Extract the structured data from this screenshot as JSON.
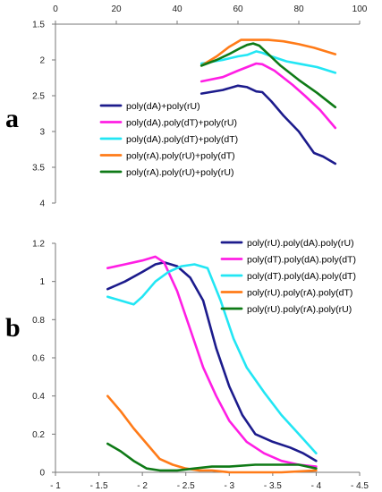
{
  "chart_data": [
    {
      "panel_label": "a",
      "type": "line",
      "x_axis": {
        "position": "top",
        "min": 0,
        "max": 100,
        "ticks": [
          0,
          20,
          40,
          60,
          80,
          100
        ],
        "tick_labels": [
          "0",
          "20",
          "40",
          "60",
          "80",
          "100"
        ]
      },
      "y_axis": {
        "inverted": true,
        "min": 1.5,
        "max": 4,
        "ticks": [
          1.5,
          2,
          2.5,
          3,
          3.5,
          4
        ],
        "tick_labels": [
          "1.5",
          "2",
          "2.5",
          "3",
          "3.5",
          "4"
        ]
      },
      "legend_position": "center",
      "series": [
        {
          "name": "poly(dA)+poly(rU)",
          "color": "#1c1b8c",
          "x": [
            48,
            55,
            60,
            63,
            66,
            68,
            71,
            75,
            80,
            85,
            88,
            92
          ],
          "y": [
            2.47,
            2.42,
            2.36,
            2.38,
            2.44,
            2.45,
            2.58,
            2.78,
            3.0,
            3.3,
            3.35,
            3.45
          ]
        },
        {
          "name": "poly(dA).poly(dT)+poly(rU)",
          "color": "#ff1ee4",
          "x": [
            48,
            55,
            60,
            63,
            66,
            68,
            72,
            78,
            82,
            87,
            92
          ],
          "y": [
            2.3,
            2.24,
            2.15,
            2.1,
            2.05,
            2.06,
            2.15,
            2.35,
            2.5,
            2.7,
            2.95
          ]
        },
        {
          "name": "poly(dA).poly(dT)+poly(dT)",
          "color": "#22e6f4",
          "x": [
            48,
            55,
            60,
            63,
            66,
            68,
            71,
            76,
            81,
            86,
            92
          ],
          "y": [
            2.05,
            2.0,
            1.95,
            1.93,
            1.88,
            1.9,
            1.95,
            2.02,
            2.06,
            2.1,
            2.18
          ]
        },
        {
          "name": "poly(rA).poly(rU)+poly(dT)",
          "color": "#ff7b18",
          "x": [
            48,
            53,
            57,
            61,
            64,
            67,
            70,
            75,
            80,
            85,
            92
          ],
          "y": [
            2.08,
            1.95,
            1.82,
            1.72,
            1.72,
            1.72,
            1.72,
            1.74,
            1.78,
            1.83,
            1.92
          ]
        },
        {
          "name": "poly(rA).poly(rU)+poly(rU)",
          "color": "#0e7a16",
          "x": [
            48,
            53,
            57,
            61,
            63,
            65,
            67,
            70,
            74,
            80,
            86,
            92
          ],
          "y": [
            2.08,
            2.0,
            1.92,
            1.83,
            1.79,
            1.77,
            1.8,
            1.92,
            2.08,
            2.28,
            2.46,
            2.66
          ]
        }
      ]
    },
    {
      "panel_label": "b",
      "type": "line",
      "x_axis": {
        "position": "bottom",
        "min": -1,
        "max": -4.5,
        "ticks": [
          -1,
          -1.5,
          -2,
          -2.5,
          -3,
          -3.5,
          -4,
          -4.5
        ],
        "tick_labels": [
          "- 1",
          "- 1.5",
          "- 2",
          "- 2.5",
          "- 3",
          "- 3.5",
          "- 4",
          "- 4.5"
        ]
      },
      "y_axis": {
        "min": 0,
        "max": 1.2,
        "ticks": [
          0,
          0.2,
          0.4,
          0.6,
          0.8,
          1,
          1.2
        ],
        "tick_labels": [
          "0",
          "0.2",
          "0.4",
          "0.6",
          "0.8",
          "1",
          "1.2"
        ]
      },
      "legend_position": "top-right",
      "series": [
        {
          "name": "poly(rU).poly(dA).poly(rU)",
          "color": "#1c1b8c",
          "x": [
            -1.6,
            -1.8,
            -2.0,
            -2.15,
            -2.25,
            -2.4,
            -2.55,
            -2.7,
            -2.85,
            -3.0,
            -3.15,
            -3.3,
            -3.5,
            -3.7,
            -3.85,
            -4.0
          ],
          "y": [
            0.96,
            1.0,
            1.05,
            1.09,
            1.1,
            1.08,
            1.02,
            0.9,
            0.65,
            0.45,
            0.3,
            0.2,
            0.16,
            0.13,
            0.1,
            0.06
          ]
        },
        {
          "name": "poly(dT).poly(dA).poly(dT)",
          "color": "#ff1ee4",
          "x": [
            -1.6,
            -1.8,
            -2.0,
            -2.15,
            -2.25,
            -2.4,
            -2.55,
            -2.7,
            -2.85,
            -3.0,
            -3.2,
            -3.4,
            -3.6,
            -3.8,
            -4.0
          ],
          "y": [
            1.07,
            1.09,
            1.11,
            1.13,
            1.1,
            0.95,
            0.75,
            0.55,
            0.4,
            0.27,
            0.16,
            0.1,
            0.06,
            0.04,
            0.03
          ]
        },
        {
          "name": "poly(dT).poly(dA).poly(dT)",
          "color": "#22e6f4",
          "x": [
            -1.6,
            -1.75,
            -1.9,
            -2.0,
            -2.15,
            -2.3,
            -2.45,
            -2.6,
            -2.75,
            -2.9,
            -3.05,
            -3.2,
            -3.4,
            -3.6,
            -3.8,
            -4.0
          ],
          "y": [
            0.92,
            0.9,
            0.88,
            0.92,
            1.0,
            1.05,
            1.08,
            1.09,
            1.07,
            0.9,
            0.7,
            0.55,
            0.42,
            0.3,
            0.2,
            0.1
          ]
        },
        {
          "name": "poly(rU).poly(rA).poly(dT)",
          "color": "#ff7b18",
          "x": [
            -1.6,
            -1.75,
            -1.9,
            -2.05,
            -2.2,
            -2.35,
            -2.5,
            -2.65,
            -2.8,
            -3.0,
            -3.3,
            -3.6,
            -4.0
          ],
          "y": [
            0.4,
            0.32,
            0.23,
            0.15,
            0.07,
            0.04,
            0.02,
            0.01,
            0.01,
            0.0,
            0.0,
            0.0,
            0.01
          ]
        },
        {
          "name": "poly(rU).poly(rA).poly(rU)",
          "color": "#0e7a16",
          "x": [
            -1.6,
            -1.75,
            -1.9,
            -2.05,
            -2.2,
            -2.4,
            -2.6,
            -2.8,
            -3.0,
            -3.3,
            -3.6,
            -3.8,
            -4.0
          ],
          "y": [
            0.15,
            0.11,
            0.06,
            0.02,
            0.01,
            0.01,
            0.02,
            0.03,
            0.03,
            0.04,
            0.04,
            0.04,
            0.02
          ]
        }
      ]
    }
  ]
}
